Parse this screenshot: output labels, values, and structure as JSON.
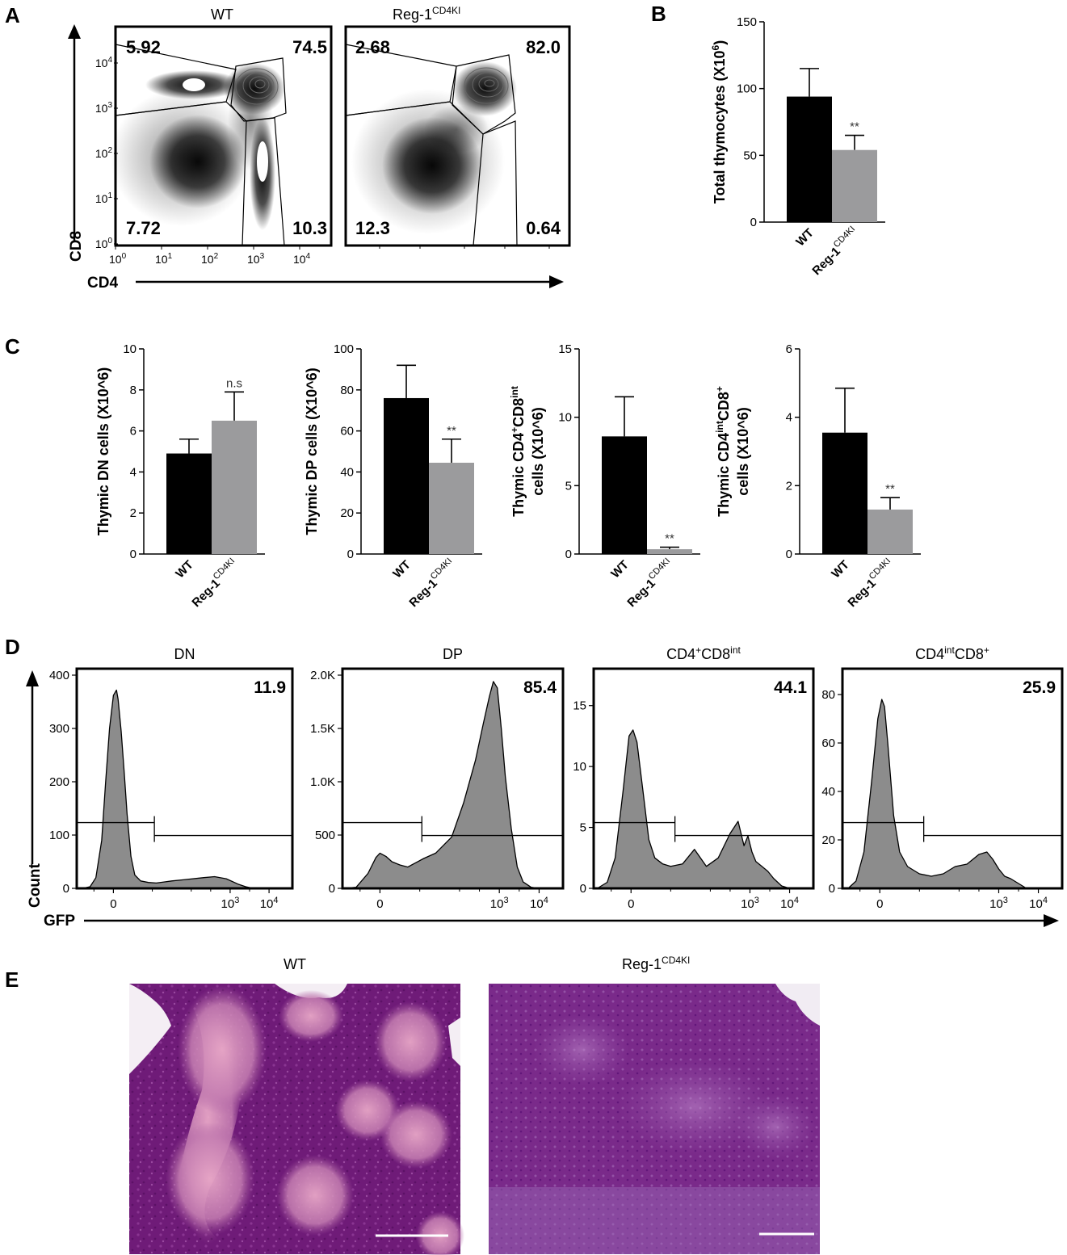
{
  "colors": {
    "wt_bar": "#000000",
    "ko_bar": "#9b9b9d",
    "hist_fill": "#8c8c8c",
    "he_stain": "#7a1f7e"
  },
  "panels": {
    "A": {
      "letter": "A",
      "wt_title": "WT",
      "ko_title_main": "Reg-1",
      "ko_title_sup": "CD4KI",
      "y_axis_label": "CD8",
      "x_axis_label": "CD4",
      "ticks": [
        {
          "base": "10",
          "exp": "0"
        },
        {
          "base": "10",
          "exp": "1"
        },
        {
          "base": "10",
          "exp": "2"
        },
        {
          "base": "10",
          "exp": "3"
        },
        {
          "base": "10",
          "exp": "4"
        }
      ],
      "wt_quadrants": {
        "tl": "5.92",
        "tr": "74.5",
        "bl": "7.72",
        "br": "10.3"
      },
      "ko_quadrants": {
        "tl": "2.68",
        "tr": "82.0",
        "bl": "12.3",
        "br": "0.64"
      }
    },
    "B": {
      "letter": "B"
    },
    "C": {
      "letter": "C"
    },
    "D": {
      "letter": "D",
      "y_axis_label": "Count",
      "x_axis_label": "GFP"
    },
    "E": {
      "letter": "E",
      "wt_title": "WT",
      "ko_title_main": "Reg-1",
      "ko_title_sup": "CD4KI"
    }
  },
  "chart_data": [
    {
      "panel": "B",
      "type": "bar",
      "categories": [
        {
          "main": "WT",
          "sup": ""
        },
        {
          "main": "Reg-1",
          "sup": "CD4KI"
        }
      ],
      "values": [
        94,
        54
      ],
      "errors": [
        21,
        11
      ],
      "significance": [
        "",
        "**"
      ],
      "ylabel_main": "Total thymocytes (X10",
      "ylabel_sup": "6",
      "ylabel_tail": ")",
      "ylim": [
        0,
        150
      ],
      "yticks": [
        "0",
        "50",
        "100",
        "150"
      ]
    },
    {
      "panel": "C1",
      "type": "bar",
      "categories": [
        {
          "main": "WT",
          "sup": ""
        },
        {
          "main": "Reg-1",
          "sup": "CD4KI"
        }
      ],
      "values": [
        4.9,
        6.5
      ],
      "errors": [
        0.7,
        1.4
      ],
      "significance": [
        "",
        "n.s"
      ],
      "ylabel_main": "Thymic DN cells (X10^6)",
      "ylim": [
        0,
        10
      ],
      "yticks": [
        "0",
        "2",
        "4",
        "6",
        "8",
        "10"
      ]
    },
    {
      "panel": "C2",
      "type": "bar",
      "categories": [
        {
          "main": "WT",
          "sup": ""
        },
        {
          "main": "Reg-1",
          "sup": "CD4KI"
        }
      ],
      "values": [
        76,
        44.5
      ],
      "errors": [
        16,
        11.5
      ],
      "significance": [
        "",
        "**"
      ],
      "ylabel_main": "Thymic DP cells (X10^6)",
      "ylim": [
        0,
        100
      ],
      "yticks": [
        "0",
        "20",
        "40",
        "60",
        "80",
        "100"
      ]
    },
    {
      "panel": "C3",
      "type": "bar",
      "categories": [
        {
          "main": "WT",
          "sup": ""
        },
        {
          "main": "Reg-1",
          "sup": "CD4KI"
        }
      ],
      "values": [
        8.6,
        0.35
      ],
      "errors": [
        2.9,
        0.15
      ],
      "significance": [
        "",
        "**"
      ],
      "ylabel_line1": "Thymic CD4",
      "ylabel_line1_sup1": "+",
      "ylabel_line1_mid": "CD8",
      "ylabel_line1_sup2": "int",
      "ylabel_line2": "cells (X10^6)",
      "ylim": [
        0,
        15
      ],
      "yticks": [
        "0",
        "5",
        "10",
        "15"
      ]
    },
    {
      "panel": "C4",
      "type": "bar",
      "categories": [
        {
          "main": "WT",
          "sup": ""
        },
        {
          "main": "Reg-1",
          "sup": "CD4KI"
        }
      ],
      "values": [
        3.55,
        1.3
      ],
      "errors": [
        1.3,
        0.35
      ],
      "significance": [
        "",
        "**"
      ],
      "ylabel_line1": "Thymic CD4",
      "ylabel_line1_sup1": "int",
      "ylabel_line1_mid": "CD8",
      "ylabel_line1_sup2": "+",
      "ylabel_line2": "cells (X10^6)",
      "ylim": [
        0,
        6
      ],
      "yticks": [
        "0",
        "2",
        "4",
        "6"
      ]
    },
    {
      "panel": "D1",
      "type": "area",
      "title_main": "DN",
      "gate_pct": "11.9",
      "ymax": 400,
      "yticks": [
        "0",
        "100",
        "200",
        "300",
        "400"
      ],
      "gfp": [
        -0.8,
        -0.6,
        -0.45,
        -0.3,
        -0.2,
        -0.1,
        0.0,
        0.08,
        0.12,
        0.2,
        0.28,
        0.35,
        0.45,
        0.55,
        0.7,
        0.9,
        1.1,
        1.3,
        1.5,
        1.8,
        2.3,
        2.6,
        2.9,
        3.2,
        3.4,
        3.6,
        4.0
      ],
      "count": [
        0,
        3,
        20,
        90,
        200,
        300,
        362,
        372,
        355,
        295,
        215,
        140,
        60,
        25,
        14,
        11,
        10,
        12,
        14,
        16,
        20,
        22,
        18,
        8,
        3,
        0,
        0
      ]
    },
    {
      "panel": "D2",
      "type": "area",
      "title_main": "DP",
      "gate_pct": "85.4",
      "ymax": 2000,
      "yticks": [
        "0",
        "500",
        "1.0K",
        "1.5K",
        "2.0K"
      ],
      "gfp": [
        -0.9,
        -0.6,
        -0.3,
        -0.1,
        0.0,
        0.15,
        0.3,
        0.5,
        0.7,
        0.9,
        1.1,
        1.4,
        1.8,
        2.1,
        2.4,
        2.6,
        2.75,
        2.85,
        2.95,
        3.05,
        3.15,
        3.3,
        3.45,
        3.6,
        3.8,
        4.0
      ],
      "count": [
        0,
        10,
        140,
        290,
        330,
        300,
        250,
        220,
        200,
        240,
        280,
        330,
        480,
        800,
        1200,
        1550,
        1800,
        1940,
        1880,
        1500,
        1050,
        560,
        200,
        60,
        10,
        0
      ]
    },
    {
      "panel": "D3",
      "type": "area",
      "title_main": "CD4",
      "title_sup1": "+",
      "title_mid": "CD8",
      "title_sup2": "int",
      "gate_pct": "44.1",
      "ymax": 17.5,
      "yticks": [
        "0",
        "5",
        "10",
        "15"
      ],
      "gfp": [
        -0.85,
        -0.6,
        -0.4,
        -0.2,
        -0.05,
        0.05,
        0.15,
        0.3,
        0.45,
        0.6,
        0.8,
        1.0,
        1.3,
        1.6,
        1.9,
        2.2,
        2.5,
        2.7,
        2.85,
        2.95,
        3.05,
        3.15,
        3.3,
        3.45,
        3.6,
        3.8,
        4.0
      ],
      "count": [
        0,
        0.5,
        2.5,
        8,
        12.5,
        13.0,
        12,
        8,
        4,
        2.5,
        2.0,
        1.8,
        2.0,
        3.2,
        1.8,
        2.5,
        4.5,
        5.5,
        3.5,
        4.3,
        3.0,
        2.2,
        1.8,
        1.4,
        0.8,
        0.2,
        0
      ]
    },
    {
      "panel": "D4",
      "type": "area",
      "title_main": "CD4",
      "title_sup1": "int",
      "title_mid": "CD8",
      "title_sup2": "+",
      "gate_pct": "25.9",
      "ymax": 88,
      "yticks": [
        "0",
        "20",
        "40",
        "60",
        "80"
      ],
      "gfp": [
        -0.8,
        -0.6,
        -0.4,
        -0.2,
        -0.05,
        0.05,
        0.12,
        0.2,
        0.35,
        0.5,
        0.7,
        1.0,
        1.3,
        1.6,
        1.9,
        2.2,
        2.5,
        2.7,
        2.85,
        3.0,
        3.15,
        3.3,
        3.5,
        3.7,
        4.0
      ],
      "count": [
        0,
        3,
        15,
        45,
        70,
        78,
        75,
        60,
        30,
        15,
        9,
        6,
        5,
        6,
        9,
        10,
        14,
        15,
        12,
        8,
        5,
        4,
        2,
        0,
        0
      ]
    }
  ]
}
